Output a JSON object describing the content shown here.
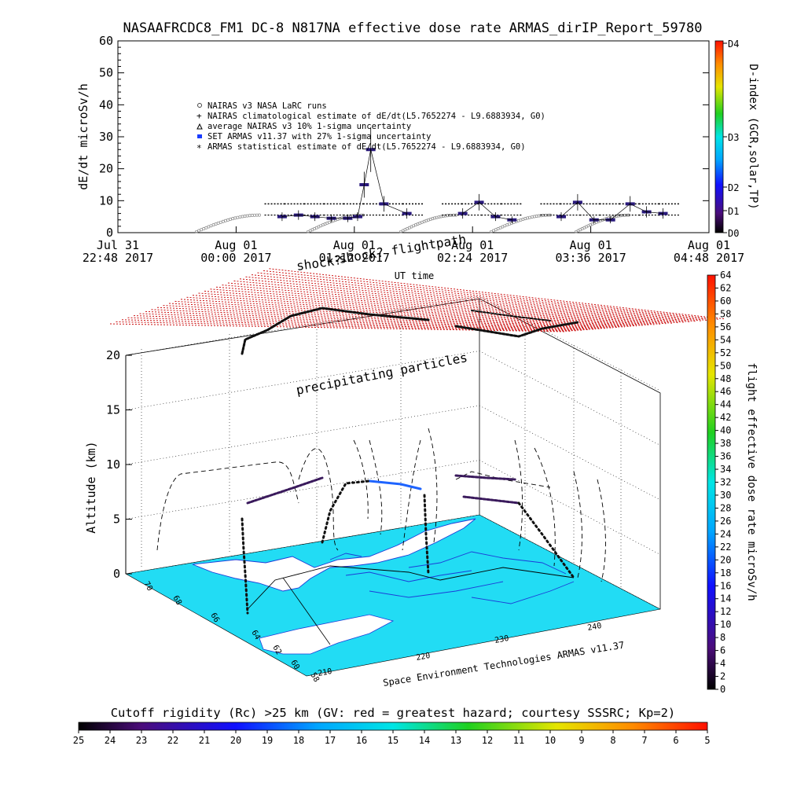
{
  "chart_data": [
    {
      "type": "line",
      "title": "NASAAFRCDC8_FM1 DC-8   N817NA effective dose rate ARMAS_dirIP_Report_59780",
      "ylabel": "dE/dt microSv/h",
      "xlabel": "UT time",
      "ylim": [
        0,
        60
      ],
      "yticks": [
        "0",
        "10",
        "20",
        "30",
        "40",
        "50",
        "60"
      ],
      "xticks": [
        {
          "day": "Jul 31",
          "time": "22:48 2017"
        },
        {
          "day": "Aug 01",
          "time": "00:00 2017"
        },
        {
          "day": "Aug 01",
          "time": "01:12 2017"
        },
        {
          "day": "Aug 01",
          "time": "02:24 2017"
        },
        {
          "day": "Aug 01",
          "time": "03:36 2017"
        },
        {
          "day": "Aug 01",
          "time": "04:48 2017"
        }
      ],
      "legend_placement": "upper-left",
      "legend": [
        {
          "symbol": "circle",
          "label": "NAIRAS v3 NASA LaRC runs"
        },
        {
          "symbol": "plus",
          "label": "NAIRAS climatological estimate of dE/dt(L5.7652274 - L9.6883934, G0)"
        },
        {
          "symbol": "triangle",
          "label": "average NAIRAS v3 10% 1-sigma uncertainty"
        },
        {
          "symbol": "blue-square",
          "label": "SET ARMAS v11.37 with 27% 1-sigma uncertainty"
        },
        {
          "symbol": "asterisk",
          "label": "ARMAS statistical estimate of dE/dt(L5.7652274 - L9.6883934, G0)"
        }
      ],
      "right_axis": {
        "label": "D-index (GCR,solar,TP)",
        "ticks": [
          "D0",
          "D1",
          "D2",
          "D3",
          "D4"
        ]
      },
      "series": [
        {
          "name": "SET ARMAS v11.37 with 27% 1-sigma uncertainty",
          "x": [
            "00:28",
            "00:38",
            "00:48",
            "00:58",
            "01:08",
            "01:14",
            "01:18",
            "01:22",
            "01:30",
            "01:44",
            "02:18",
            "02:28",
            "02:38",
            "02:48",
            "03:18",
            "03:28",
            "03:38",
            "03:48",
            "04:00",
            "04:10",
            "04:20"
          ],
          "values": [
            5,
            5.5,
            5,
            4.5,
            4.5,
            5,
            15,
            26,
            9,
            6,
            6,
            9.5,
            5,
            4,
            5,
            9.5,
            4,
            4,
            9,
            6.5,
            6
          ]
        },
        {
          "name": "ARMAS statistical estimate of dE/dt(L5.7652274 - L9.6883934, G0)",
          "x": [
            "00:24",
            "00:36",
            "00:48",
            "01:00",
            "01:12",
            "01:24",
            "01:36",
            "01:48",
            "02:12",
            "02:24",
            "02:36",
            "02:48",
            "03:12",
            "03:24",
            "03:36",
            "03:48",
            "04:00",
            "04:12",
            "04:24"
          ],
          "values": [
            9,
            9,
            9,
            9,
            9,
            9,
            9,
            9,
            9,
            9,
            9,
            9,
            9,
            9,
            9,
            9,
            9,
            9,
            9
          ]
        },
        {
          "name": "NAIRAS climatological estimate of dE/dt(L5.7652274 - L9.6883934, G0)",
          "x": [
            "00:24",
            "00:36",
            "00:48",
            "01:00",
            "01:12",
            "01:24",
            "01:36",
            "01:48",
            "02:12",
            "02:24",
            "02:36",
            "02:48",
            "03:12",
            "03:24",
            "03:36",
            "03:48",
            "04:00",
            "04:12",
            "04:24"
          ],
          "values": [
            5.5,
            5.5,
            5.5,
            5.5,
            5.5,
            5.5,
            5.5,
            5.5,
            5.5,
            5.5,
            5.5,
            5.5,
            5.5,
            5.5,
            5.5,
            5.5,
            5.5,
            5.5,
            5.5
          ]
        }
      ]
    },
    {
      "type": "scatter",
      "subtype": "3d-flight-track",
      "zlabel": "Altitude (km)",
      "zlim": [
        0,
        20
      ],
      "zticks": [
        "0",
        "5",
        "10",
        "15",
        "20"
      ],
      "lat_ticks": [
        "58",
        "60",
        "62",
        "64",
        "66",
        "68",
        "70"
      ],
      "lon_ticks": [
        "210",
        "220",
        "230",
        "240"
      ],
      "annotations": [
        "shock? flightpath",
        "shock?",
        "precipitating particles",
        "Space Environment Technologies ARMAS v11.37"
      ],
      "colorbar": {
        "label": "flight effective dose rate microSv/h",
        "range": [
          0,
          64
        ],
        "ticks": [
          "0",
          "2",
          "4",
          "6",
          "8",
          "10",
          "12",
          "14",
          "16",
          "18",
          "20",
          "22",
          "24",
          "26",
          "28",
          "30",
          "32",
          "34",
          "36",
          "38",
          "40",
          "42",
          "44",
          "46",
          "48",
          "50",
          "52",
          "54",
          "56",
          "58",
          "60",
          "62",
          "64"
        ]
      },
      "cutoff_bar": {
        "title": "Cutoff rigidity (Rc) >25 km (GV: red = greatest hazard; courtesy SSSRC; Kp=2)",
        "ticks": [
          "25",
          "24",
          "23",
          "22",
          "21",
          "20",
          "19",
          "18",
          "17",
          "16",
          "15",
          "14",
          "13",
          "12",
          "11",
          "10",
          "9",
          "8",
          "7",
          "6",
          "5"
        ]
      }
    }
  ],
  "colors": {
    "ocean": "#22dcf4",
    "land": "#ffffff",
    "grid_layer": "#cc1111",
    "dose_marker": "#3a1a5c",
    "spectrum": [
      "#000000",
      "#4b0d7a",
      "#1010ff",
      "#00a5ff",
      "#00e5e5",
      "#20d020",
      "#e5e500",
      "#ff8c00",
      "#ff1000"
    ]
  }
}
